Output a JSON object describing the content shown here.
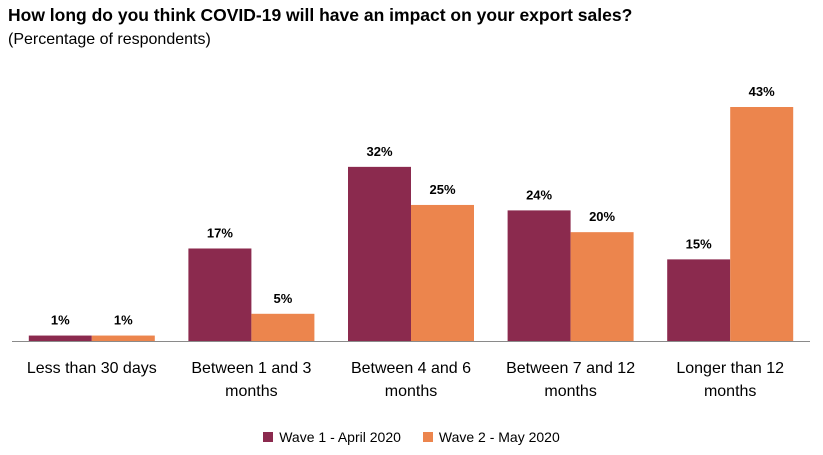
{
  "chart_data": {
    "type": "bar",
    "title": "How long do you think COVID-19 will have an impact on your export sales?",
    "subtitle": "(Percentage of respondents)",
    "categories": [
      [
        "Less than 30 days"
      ],
      [
        "Between 1 and 3",
        "months"
      ],
      [
        "Between 4 and 6",
        "months"
      ],
      [
        "Between 7 and 12",
        "months"
      ],
      [
        "Longer than 12",
        "months"
      ]
    ],
    "series": [
      {
        "name": "Wave 1 - April 2020",
        "color": "#8B2A4E",
        "values": [
          1,
          17,
          32,
          24,
          15
        ],
        "labels": [
          "1%",
          "17%",
          "32%",
          "24%",
          "15%"
        ]
      },
      {
        "name": "Wave 2 - May 2020",
        "color": "#EC854D",
        "values": [
          1,
          5,
          25,
          20,
          43
        ],
        "labels": [
          "1%",
          "5%",
          "25%",
          "20%",
          "43%"
        ]
      }
    ],
    "ylim": [
      0,
      43
    ],
    "grid": false,
    "legend_position": "bottom"
  }
}
